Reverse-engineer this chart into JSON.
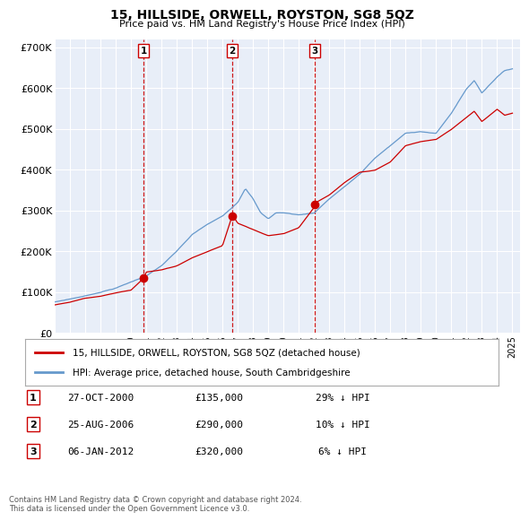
{
  "title": "15, HILLSIDE, ORWELL, ROYSTON, SG8 5QZ",
  "subtitle": "Price paid vs. HM Land Registry's House Price Index (HPI)",
  "xlim": [
    1995.0,
    2025.5
  ],
  "ylim": [
    0,
    720000
  ],
  "yticks": [
    0,
    100000,
    200000,
    300000,
    400000,
    500000,
    600000,
    700000
  ],
  "ytick_labels": [
    "£0",
    "£100K",
    "£200K",
    "£300K",
    "£400K",
    "£500K",
    "£600K",
    "£700K"
  ],
  "xticks": [
    1995,
    1996,
    1997,
    1998,
    1999,
    2000,
    2001,
    2002,
    2003,
    2004,
    2005,
    2006,
    2007,
    2008,
    2009,
    2010,
    2011,
    2012,
    2013,
    2014,
    2015,
    2016,
    2017,
    2018,
    2019,
    2020,
    2021,
    2022,
    2023,
    2024,
    2025
  ],
  "bg_color": "#e8eef8",
  "grid_color": "#ffffff",
  "red_line_color": "#cc0000",
  "blue_line_color": "#6699cc",
  "sale_marker_color": "#cc0000",
  "dashed_line_color": "#cc0000",
  "legend_items": [
    "15, HILLSIDE, ORWELL, ROYSTON, SG8 5QZ (detached house)",
    "HPI: Average price, detached house, South Cambridgeshire"
  ],
  "transactions": [
    {
      "num": 1,
      "date": "27-OCT-2000",
      "price": "£135,000",
      "pct": "29%",
      "x": 2000.83
    },
    {
      "num": 2,
      "date": "25-AUG-2006",
      "price": "£290,000",
      "pct": "10%",
      "x": 2006.65
    },
    {
      "num": 3,
      "date": "06-JAN-2012",
      "price": "£320,000",
      "pct": "6%",
      "x": 2012.03
    }
  ],
  "footnote1": "Contains HM Land Registry data © Crown copyright and database right 2024.",
  "footnote2": "This data is licensed under the Open Government Licence v3.0."
}
